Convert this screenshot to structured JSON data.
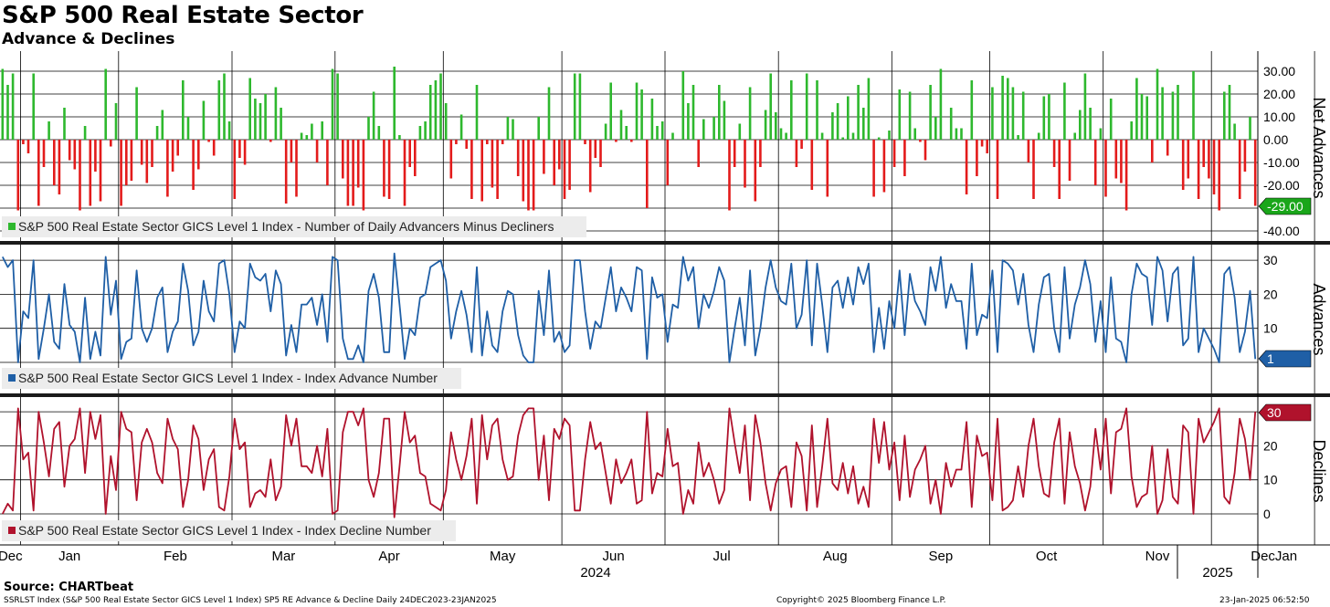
{
  "header": {
    "title": "S&P 500 Real Estate Sector",
    "subtitle": "Advance & Declines"
  },
  "footer": {
    "source": "Source: CHARTbeat",
    "description": "SSRLST Index (S&P 500 Real Estate Sector GICS Level 1 Index) SP5 RE Advance & Decline  Daily 24DEC2023-23JAN2025",
    "copyright": "Copyright© 2025 Bloomberg Finance L.P.",
    "timestamp": "23-Jan-2025 06:52:50"
  },
  "colors": {
    "positive": "#2eb82e",
    "negative": "#e31b1b",
    "advances_line": "#1f5fa6",
    "declines_line": "#b0122c",
    "grid": "#000000",
    "legend_bg": "#ececec"
  },
  "chart_data": [
    {
      "type": "bar",
      "axis_label": "Net Advances",
      "legend": "S&P 500 Real Estate Sector GICS Level 1 Index - Number of Daily Advancers Minus Decliners",
      "yticks": [
        "30.00",
        "20.00",
        "10.00",
        "0.00",
        "-10.00",
        "-20.00",
        "-30.00",
        "-40.00"
      ],
      "ylim": [
        -40,
        30
      ],
      "last_value_label": "-29.00",
      "values": [
        31,
        24,
        29,
        -31,
        -2,
        -6,
        29,
        -29,
        -12,
        8,
        -20,
        -24,
        14,
        -9,
        -13,
        -31,
        6,
        -29,
        -14,
        -27,
        31,
        -3,
        16,
        -29,
        -20,
        -18,
        23,
        -11,
        -19,
        -12,
        6,
        13,
        -25,
        -14,
        -7,
        26,
        10,
        -22,
        -13,
        17,
        -1,
        -7,
        26,
        29,
        8,
        -26,
        -8,
        -11,
        27,
        18,
        16,
        20,
        -1,
        23,
        14,
        -28,
        -10,
        -25,
        3,
        2,
        7,
        -10,
        8,
        -20,
        31,
        29,
        -17,
        -29,
        -29,
        -21,
        -31,
        10,
        21,
        6,
        -25,
        -26,
        32,
        2,
        -29,
        -12,
        -16,
        6,
        8,
        24,
        26,
        29,
        16,
        -17,
        -2,
        11,
        -4,
        -26,
        24,
        -27,
        -2,
        -21,
        -26,
        -2,
        10,
        9,
        -16,
        -27,
        -31,
        -31,
        10,
        -15,
        23,
        -20,
        -13,
        -26,
        -22,
        29,
        29,
        -2,
        -23,
        -8,
        -12,
        7,
        25,
        -1,
        13,
        6,
        -1,
        25,
        22,
        -30,
        18,
        6,
        8,
        -20,
        3,
        0,
        30,
        16,
        24,
        -12,
        9,
        0,
        10,
        24,
        17,
        -31,
        -12,
        7,
        -21,
        23,
        -27,
        -12,
        13,
        29,
        12,
        5,
        3,
        26,
        -12,
        -4,
        29,
        -22,
        26,
        3,
        -25,
        12,
        16,
        1,
        19,
        3,
        24,
        14,
        27,
        -25,
        1,
        -23,
        4,
        -12,
        22,
        -16,
        21,
        5,
        -1,
        -9,
        24,
        10,
        31,
        0,
        14,
        5,
        5,
        -24,
        26,
        -16,
        -3,
        -6,
        23,
        -26,
        28,
        27,
        23,
        2,
        21,
        -10,
        -26,
        3,
        19,
        20,
        -12,
        -26,
        25,
        -18,
        3,
        13,
        29,
        14,
        -20,
        5,
        -25,
        18,
        -17,
        -19,
        -31,
        8,
        27,
        20,
        19,
        -10,
        31,
        23,
        -7,
        21,
        24,
        -22,
        -17,
        30,
        -26,
        -12,
        -17,
        -24,
        -31,
        21,
        24,
        7,
        -26,
        -14,
        10,
        -29
      ],
      "highlight_indices": [
        178
      ],
      "month_boundaries": [
        4,
        23,
        45,
        65,
        86,
        109,
        129,
        151,
        173,
        192,
        214,
        235,
        255
      ],
      "month_labels": [
        "Dec",
        "Jan",
        "Feb",
        "Mar",
        "Apr",
        "May",
        "Jun",
        "Jul",
        "Aug",
        "Sep",
        "Oct",
        "Nov",
        "Dec",
        "Jan"
      ],
      "year_labels": [
        "2024",
        "2025"
      ]
    },
    {
      "type": "line",
      "axis_label": "Advances",
      "legend": "S&P 500 Real Estate Sector GICS Level 1 Index - Index Advance Number",
      "yticks": [
        "30",
        "20",
        "10"
      ],
      "ylim": [
        0,
        31
      ],
      "last_value_label": "1"
    },
    {
      "type": "line",
      "axis_label": "Declines",
      "legend": "S&P 500 Real Estate Sector GICS Level 1 Index - Index Decline Number",
      "yticks": [
        "20",
        "10",
        "0"
      ],
      "ylim": [
        0,
        31
      ],
      "last_value_label": "30"
    }
  ]
}
